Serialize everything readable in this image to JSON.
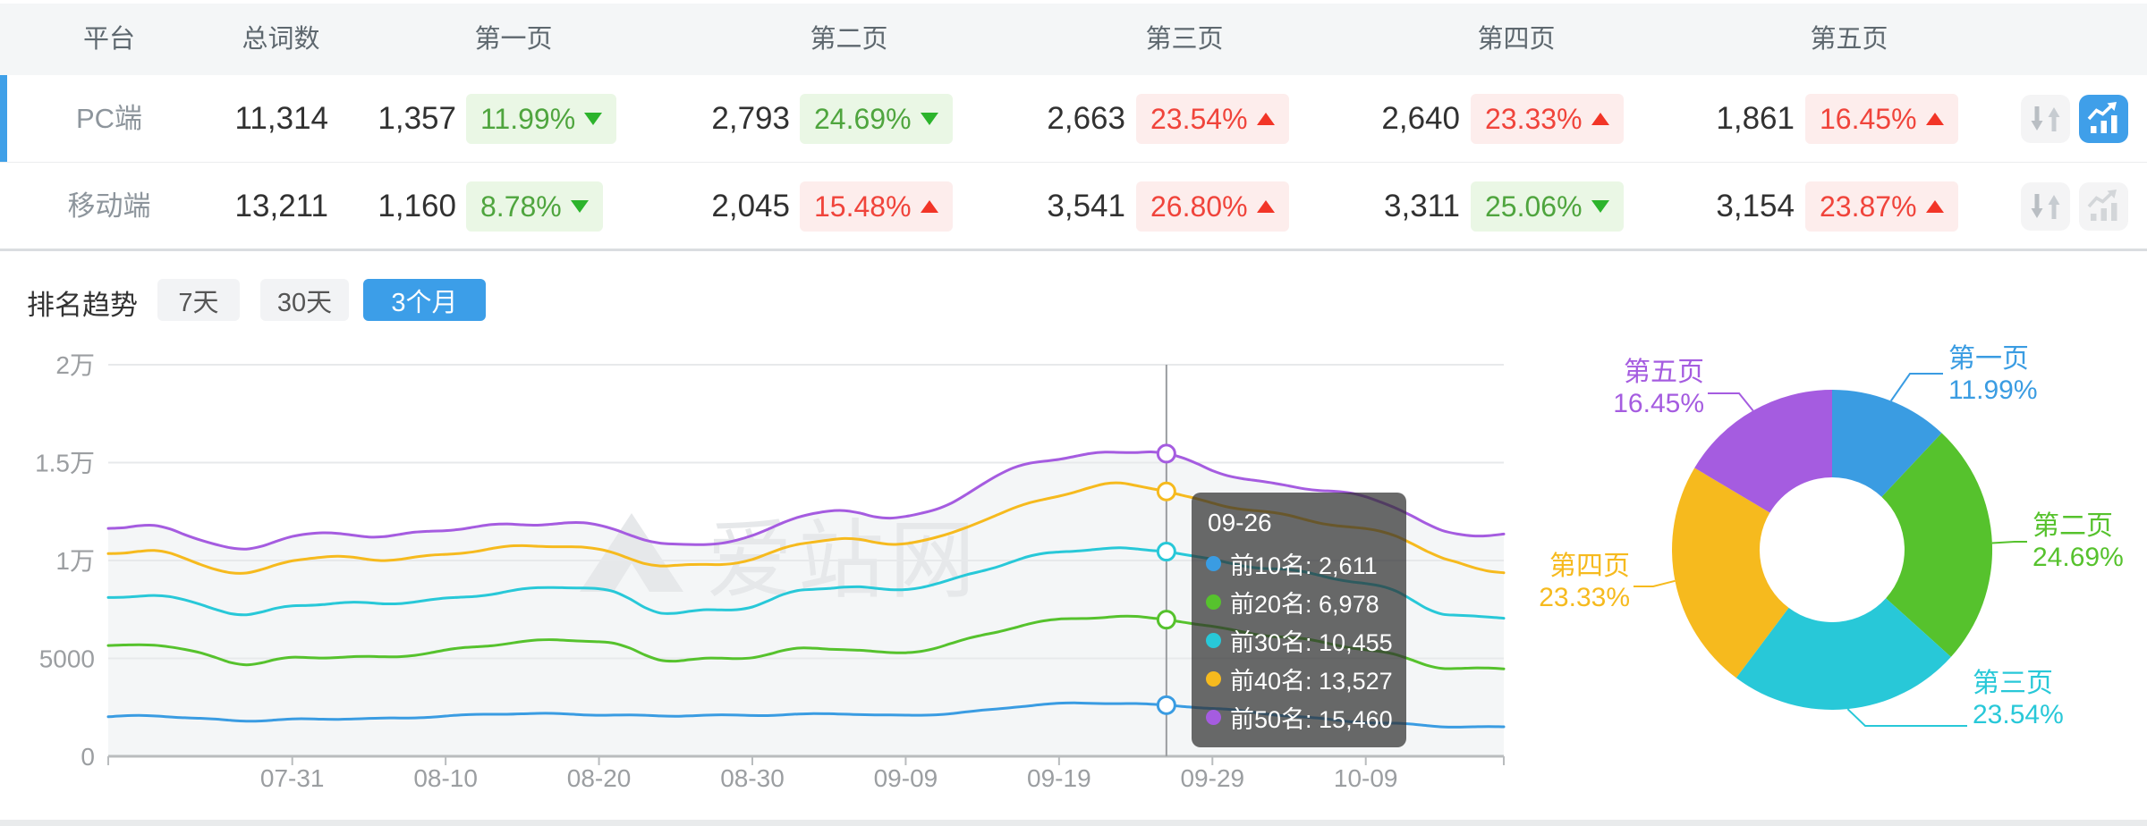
{
  "table": {
    "headers": [
      "平台",
      "总词数",
      "第一页",
      "第二页",
      "第三页",
      "第四页",
      "第五页"
    ],
    "rows": [
      {
        "platform": "PC端",
        "total": "11,314",
        "active": true,
        "chart_button_active": true,
        "pages": [
          {
            "value": "1,357",
            "pct": "11.99%",
            "dir": "down"
          },
          {
            "value": "2,793",
            "pct": "24.69%",
            "dir": "down"
          },
          {
            "value": "2,663",
            "pct": "23.54%",
            "dir": "up"
          },
          {
            "value": "2,640",
            "pct": "23.33%",
            "dir": "up"
          },
          {
            "value": "1,861",
            "pct": "16.45%",
            "dir": "up"
          }
        ]
      },
      {
        "platform": "移动端",
        "total": "13,211",
        "active": false,
        "chart_button_active": false,
        "pages": [
          {
            "value": "1,160",
            "pct": "8.78%",
            "dir": "down"
          },
          {
            "value": "2,045",
            "pct": "15.48%",
            "dir": "up"
          },
          {
            "value": "3,541",
            "pct": "26.80%",
            "dir": "up"
          },
          {
            "value": "3,311",
            "pct": "25.06%",
            "dir": "down"
          },
          {
            "value": "3,154",
            "pct": "23.87%",
            "dir": "up"
          }
        ]
      }
    ]
  },
  "trend": {
    "title": "排名趋势",
    "tabs": [
      "7天",
      "30天",
      "3个月"
    ],
    "active_tab": "3个月"
  },
  "watermark": "爱站网",
  "colors": {
    "accent_blue": "#3c9ee8",
    "badge_green_text": "#4fa53e",
    "badge_green_bg": "#eaf7e5",
    "badge_red_text": "#f0443b",
    "badge_red_bg": "#fdedec",
    "series": [
      "#3a9ce2",
      "#56c22d",
      "#28c8d8",
      "#f6ba1e",
      "#a55ce0"
    ]
  },
  "chart_data": [
    {
      "type": "line",
      "title": "排名趋势",
      "start_date": "07-19",
      "end_date": "10-18",
      "n_points": 92,
      "x_tick_labels": [
        "07-31",
        "08-10",
        "08-20",
        "08-30",
        "09-09",
        "09-19",
        "09-29",
        "10-09"
      ],
      "x_tick_indices": [
        12,
        22,
        32,
        42,
        52,
        62,
        72,
        82
      ],
      "ylim": [
        0,
        20000
      ],
      "y_ticks": [
        {
          "v": 0,
          "label": "0"
        },
        {
          "v": 5000,
          "label": "5000"
        },
        {
          "v": 10000,
          "label": "1万"
        },
        {
          "v": 15000,
          "label": "1.5万"
        },
        {
          "v": 20000,
          "label": "2万"
        }
      ],
      "keyframe_indices": [
        0,
        3,
        6,
        9,
        12,
        15,
        18,
        21,
        24,
        27,
        30,
        33,
        36,
        39,
        42,
        45,
        48,
        51,
        54,
        57,
        60,
        63,
        66,
        69,
        72,
        75,
        78,
        81,
        84,
        87,
        91
      ],
      "series": [
        {
          "name": "前10名",
          "color": "#3a9ce2",
          "values": [
            2000,
            2060,
            1930,
            1830,
            1870,
            1900,
            1940,
            2030,
            2110,
            2170,
            2160,
            2120,
            2050,
            2080,
            2110,
            2150,
            2160,
            2070,
            2160,
            2340,
            2580,
            2700,
            2720,
            2611,
            2430,
            2210,
            2010,
            1790,
            1650,
            1520,
            1510
          ]
        },
        {
          "name": "前20名",
          "color": "#56c22d",
          "values": [
            5600,
            5750,
            5250,
            4680,
            5020,
            5100,
            5080,
            5250,
            5600,
            5870,
            5950,
            5700,
            4950,
            5000,
            5080,
            5450,
            5480,
            5300,
            5550,
            6150,
            6750,
            7080,
            7120,
            6978,
            6600,
            6280,
            5950,
            5550,
            5150,
            4550,
            4470
          ]
        },
        {
          "name": "前30名",
          "color": "#28c8d8",
          "values": [
            8100,
            8260,
            7700,
            7230,
            7720,
            7820,
            7780,
            7950,
            8250,
            8500,
            8620,
            8350,
            7400,
            7450,
            7620,
            8450,
            8680,
            8520,
            8750,
            9500,
            10200,
            10520,
            10560,
            10455,
            10050,
            9650,
            9350,
            8950,
            8450,
            7250,
            7080
          ]
        },
        {
          "name": "前40名",
          "color": "#f6ba1e",
          "values": [
            10350,
            10450,
            9850,
            9350,
            10020,
            10120,
            10070,
            10250,
            10500,
            10680,
            10750,
            10400,
            9700,
            9780,
            10050,
            10900,
            11050,
            10850,
            11150,
            12100,
            12850,
            13500,
            13950,
            13527,
            12900,
            12500,
            12150,
            11700,
            11250,
            10050,
            9450
          ]
        },
        {
          "name": "前50名",
          "color": "#a55ce0",
          "values": [
            11650,
            11750,
            11150,
            10500,
            11250,
            11350,
            11300,
            11450,
            11700,
            11850,
            11950,
            11600,
            10800,
            10900,
            11250,
            12250,
            12450,
            12250,
            12600,
            13900,
            14900,
            15350,
            15560,
            15460,
            14600,
            14050,
            13750,
            13350,
            12700,
            11500,
            11350
          ]
        }
      ],
      "tooltip": {
        "date": "09-26",
        "index": 69,
        "entries": [
          {
            "name": "前10名",
            "value": "2,611"
          },
          {
            "name": "前20名",
            "value": "6,978"
          },
          {
            "name": "前30名",
            "value": "10,455"
          },
          {
            "name": "前40名",
            "value": "13,527"
          },
          {
            "name": "前50名",
            "value": "15,460"
          }
        ]
      }
    },
    {
      "type": "pie",
      "inner_radius_ratio": 0.45,
      "slices": [
        {
          "label": "第一页",
          "pct": 11.99,
          "color": "#3a9ce2"
        },
        {
          "label": "第二页",
          "pct": 24.69,
          "color": "#56c22d"
        },
        {
          "label": "第三页",
          "pct": 23.54,
          "color": "#28c8d8"
        },
        {
          "label": "第四页",
          "pct": 23.33,
          "color": "#f6ba1e"
        },
        {
          "label": "第五页",
          "pct": 16.45,
          "color": "#a55ce0"
        }
      ]
    }
  ]
}
